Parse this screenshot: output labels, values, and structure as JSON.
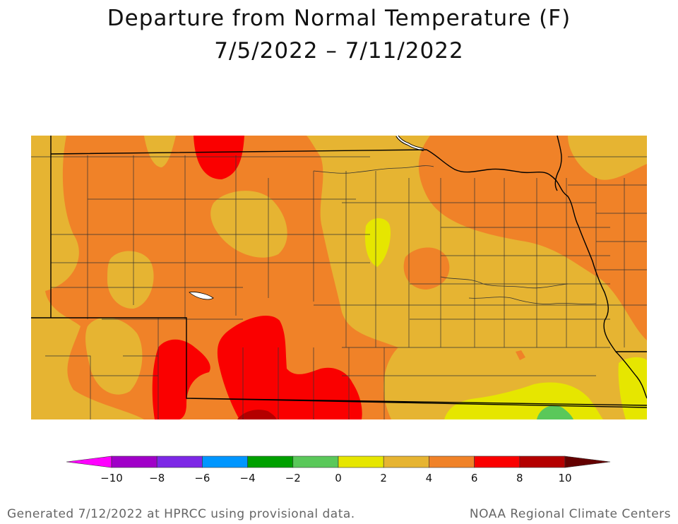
{
  "title": "Departure from Normal Temperature (F)",
  "date_range": "7/5/2022 – 7/11/2022",
  "colorbar": {
    "ticks": [
      "−10",
      "−8",
      "−6",
      "−4",
      "−2",
      "0",
      "2",
      "4",
      "6",
      "8",
      "10"
    ],
    "colors": [
      "#a000c8",
      "#7d28e6",
      "#0096ff",
      "#00a000",
      "#5ac85a",
      "#e6e600",
      "#e6b432",
      "#f08228",
      "#fa0000",
      "#b40000"
    ],
    "low_arrow_color": "#ff00ff",
    "high_arrow_color": "#640000"
  },
  "map_colors": {
    "anom_4_6": "#f08228",
    "anom_2_4": "#e6b432",
    "anom_0_2": "#e6e600",
    "anom_6_8": "#fa0000",
    "anom_8_10": "#b40000",
    "anom_m2_0": "#5ac85a"
  },
  "footer": {
    "left": "Generated 7/12/2022 at HPRCC using provisional data.",
    "right": "NOAA Regional Climate Centers"
  }
}
